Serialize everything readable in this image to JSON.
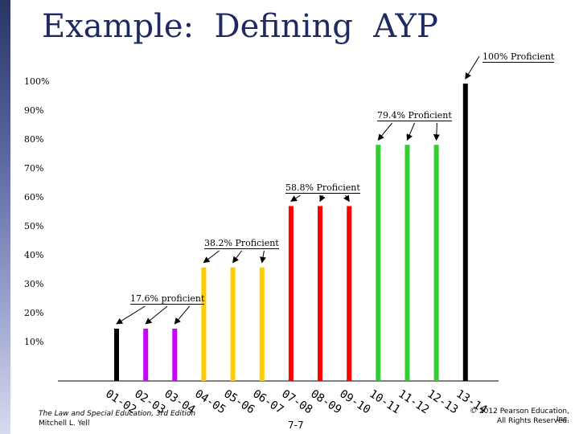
{
  "slide": {
    "title": "Example:  Defining  AYP",
    "footer_left_line1": "The Law and Special Education, 3rd Edition",
    "footer_left_line2": "Mitchell L. Yell",
    "page_number": "7-7",
    "copyright_line1": "© 2012 Pearson Education, Inc.",
    "copyright_line2": "All Rights Reserved."
  },
  "colors": {
    "sidebar": "#3b4580",
    "title": "#1f2a63",
    "black": "#000000",
    "purple": "#cc00ff",
    "yellow": "#ffcc00",
    "red": "#ff0000",
    "green": "#33cc33"
  },
  "chart_data": {
    "type": "bar",
    "y_tick_labels": [
      "100%",
      "90%",
      "80%",
      "70%",
      "60%",
      "50%",
      "40%",
      "30%",
      "20%",
      "10%"
    ],
    "ylim": [
      0,
      100
    ],
    "categories": [
      "01-02",
      "02-03",
      "03-04",
      "04-05",
      "05-06",
      "06-07",
      "07-08",
      "08-09",
      "09-10",
      "10-11",
      "11-12",
      "12-13",
      "13-14"
    ],
    "values": [
      17.6,
      17.6,
      17.6,
      38.2,
      38.2,
      38.2,
      58.8,
      58.8,
      58.8,
      79.4,
      79.4,
      79.4,
      100
    ],
    "bar_colors": [
      "#000000",
      "#cc00ff",
      "#cc00ff",
      "#ffcc00",
      "#ffcc00",
      "#ffcc00",
      "#ff0000",
      "#ff0000",
      "#ff0000",
      "#33cc33",
      "#33cc33",
      "#33cc33",
      "#000000"
    ],
    "annotations": [
      {
        "text": "17.6% proficient",
        "targets": [
          0,
          1,
          2
        ]
      },
      {
        "text": "38.2% Proficient",
        "targets": [
          3,
          4,
          5
        ]
      },
      {
        "text": "58.8% Proficient",
        "targets": [
          6,
          7,
          8
        ]
      },
      {
        "text": "79.4% Proficient",
        "targets": [
          9,
          10,
          11
        ]
      },
      {
        "text": "100% Proficient",
        "targets": [
          12
        ]
      }
    ]
  }
}
